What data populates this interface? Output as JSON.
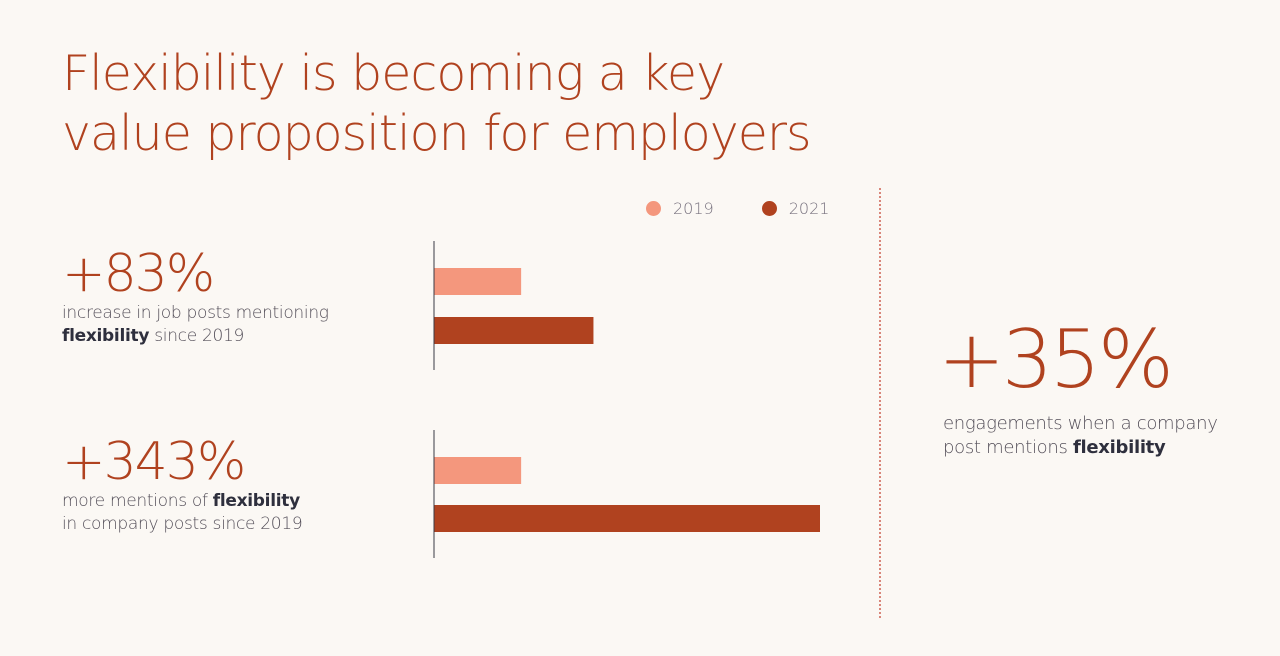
{
  "title_line1": "Flexibility is becoming a key",
  "title_line2": "value proposition for employers",
  "legend": [
    {
      "label": "2019",
      "color": "#f4977d"
    },
    {
      "label": "2021",
      "color": "#b0421f"
    }
  ],
  "stat1": {
    "value": "+83%",
    "desc_line1": "increase in job posts mentioning",
    "desc_bold": "flexibility",
    "desc_rest": " since 2019"
  },
  "stat2": {
    "value": "+343%",
    "desc_pre": "more mentions of ",
    "desc_bold": "flexibility",
    "desc_line2": "in company posts since 2019"
  },
  "stat3": {
    "value": "+35%",
    "desc_line1": "engagements when a company",
    "desc_pre": "post mentions ",
    "desc_bold": "flexibility"
  },
  "chart_data": {
    "type": "bar",
    "orientation": "horizontal",
    "groups": [
      {
        "label": "job posts mentioning flexibility",
        "values": {
          "2019": 1.0,
          "2021": 1.83
        }
      },
      {
        "label": "company posts mentioning flexibility",
        "values": {
          "2019": 1.0,
          "2021": 4.43
        }
      }
    ],
    "series": [
      {
        "name": "2019",
        "color": "#f4977d"
      },
      {
        "name": "2021",
        "color": "#b0421f"
      }
    ],
    "xlim": [
      0,
      4.43
    ],
    "axis_color": "#3a3a45",
    "grid": false,
    "legend_position": "top-right"
  }
}
